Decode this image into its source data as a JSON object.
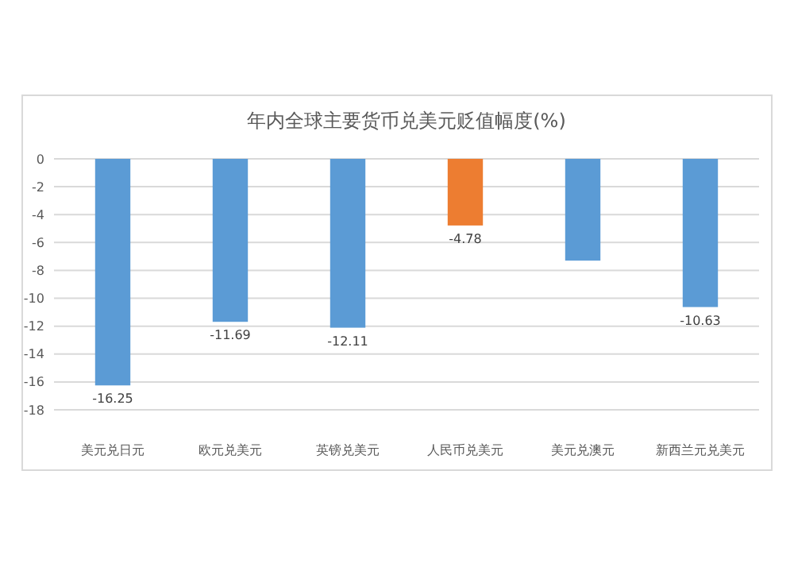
{
  "chart_data": {
    "type": "bar",
    "title": "年内全球主要货币兑美元贬值幅度(%)",
    "categories": [
      "美元兑日元",
      "欧元兑美元",
      "英镑兑美元",
      "人民币兑美元",
      "美元兑澳元",
      "新西兰元兑美元"
    ],
    "values": [
      -16.25,
      -11.69,
      -12.11,
      -4.78,
      -7.3,
      -10.63
    ],
    "colors": [
      "#5b9bd5",
      "#5b9bd5",
      "#5b9bd5",
      "#ed7d31",
      "#5b9bd5",
      "#5b9bd5"
    ],
    "value_labels": [
      "-16.25",
      "-11.69",
      "-12.11",
      "-4.78",
      null,
      "-10.63"
    ],
    "ylim": [
      -18,
      0
    ],
    "yticks": [
      0,
      -2,
      -4,
      -6,
      -8,
      -10,
      -12,
      -14,
      -16,
      -18
    ],
    "grid": "y"
  }
}
